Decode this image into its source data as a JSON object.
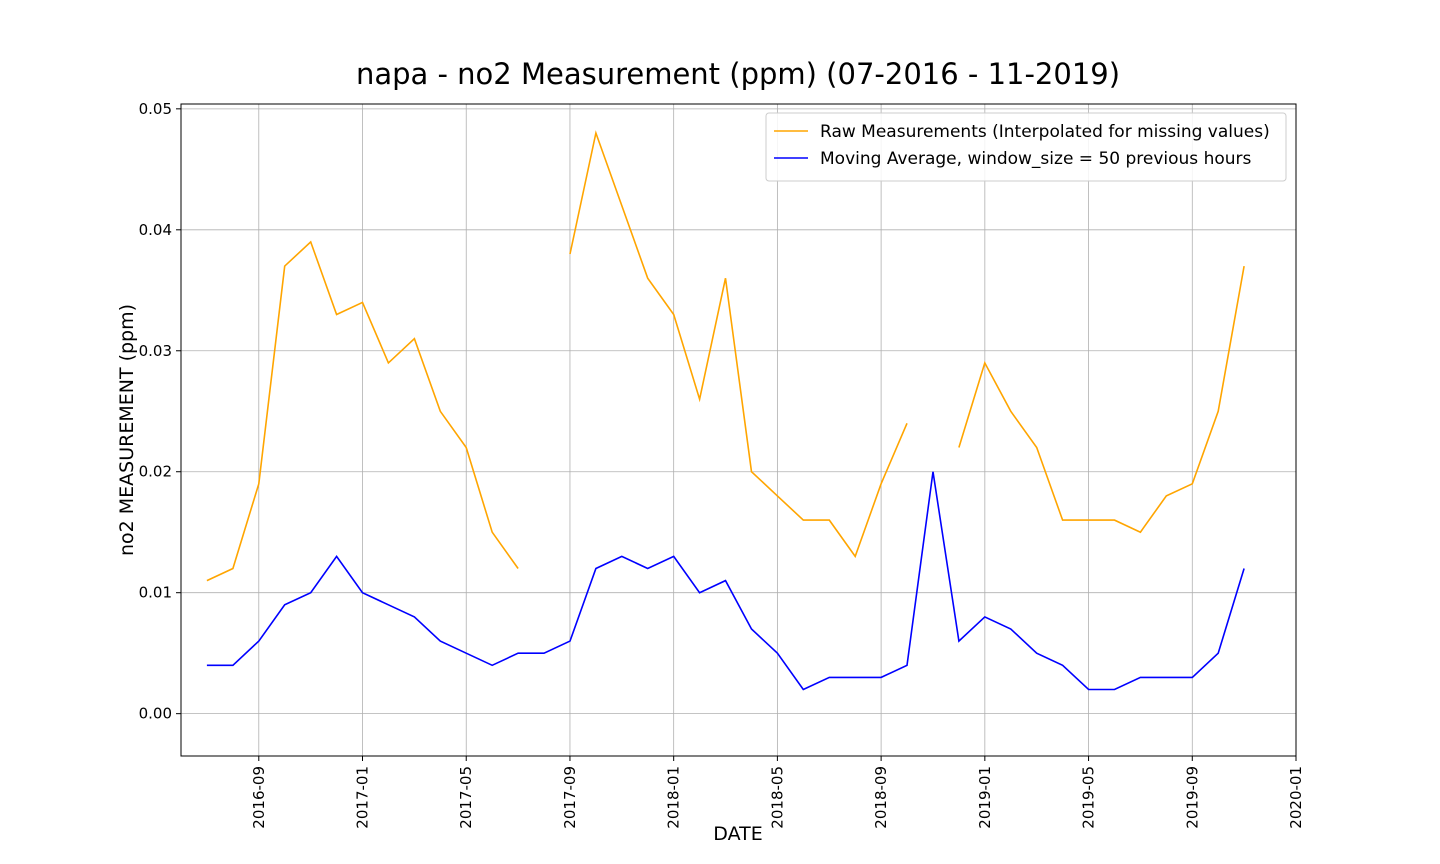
{
  "chart_data": {
    "type": "line",
    "title": "napa - no2 Measurement (ppm) (07-2016 - 11-2019)",
    "x_label": "DATE",
    "y_label": "no2 MEASUREMENT (ppm)",
    "x": [
      "2016-07",
      "2016-08",
      "2016-09",
      "2016-10",
      "2016-11",
      "2016-12",
      "2017-01",
      "2017-02",
      "2017-03",
      "2017-04",
      "2017-05",
      "2017-06",
      "2017-07",
      "2017-08",
      "2017-09",
      "2017-10",
      "2017-11",
      "2017-12",
      "2018-01",
      "2018-02",
      "2018-03",
      "2018-04",
      "2018-05",
      "2018-06",
      "2018-07",
      "2018-08",
      "2018-09",
      "2018-10",
      "2018-11",
      "2018-12",
      "2019-01",
      "2019-02",
      "2019-03",
      "2019-04",
      "2019-05",
      "2019-06",
      "2019-07",
      "2019-08",
      "2019-09",
      "2019-10",
      "2019-11"
    ],
    "series": [
      {
        "name": "Raw Measurements (Interpolated for missing values)",
        "color": "#ffa500",
        "values": [
          0.011,
          0.012,
          0.019,
          0.037,
          0.039,
          0.033,
          0.034,
          0.029,
          0.031,
          0.025,
          0.022,
          0.015,
          0.012,
          null,
          0.038,
          0.048,
          0.042,
          0.036,
          0.033,
          0.026,
          0.036,
          0.02,
          0.018,
          0.016,
          0.016,
          0.013,
          0.019,
          0.024,
          null,
          0.022,
          0.029,
          0.025,
          0.022,
          0.016,
          0.016,
          0.016,
          0.015,
          0.018,
          0.019,
          0.025,
          0.037
        ]
      },
      {
        "name": "Moving Average, window_size = 50 previous hours",
        "color": "#0000ff",
        "values": [
          0.004,
          0.004,
          0.006,
          0.009,
          0.01,
          0.013,
          0.01,
          0.009,
          0.008,
          0.006,
          0.005,
          0.004,
          0.005,
          0.005,
          0.006,
          0.012,
          0.013,
          0.012,
          0.013,
          0.01,
          0.011,
          0.007,
          0.005,
          0.002,
          0.003,
          0.003,
          0.003,
          0.004,
          0.02,
          0.006,
          0.008,
          0.007,
          0.005,
          0.004,
          0.002,
          0.002,
          0.003,
          0.003,
          0.003,
          0.005,
          0.012
        ]
      }
    ],
    "xlim": [
      "2016-06",
      "2020-01"
    ],
    "xticks": [
      "2016-09",
      "2017-01",
      "2017-05",
      "2017-09",
      "2018-01",
      "2018-05",
      "2018-09",
      "2019-01",
      "2019-05",
      "2019-09",
      "2020-01"
    ],
    "ylim": [
      -0.0035,
      0.0504
    ],
    "yticks": [
      {
        "value": 0,
        "label": "0.00"
      },
      0.01,
      0.02,
      0.03,
      0.04,
      0.05
    ],
    "grid": true,
    "legend": "upper right"
  }
}
